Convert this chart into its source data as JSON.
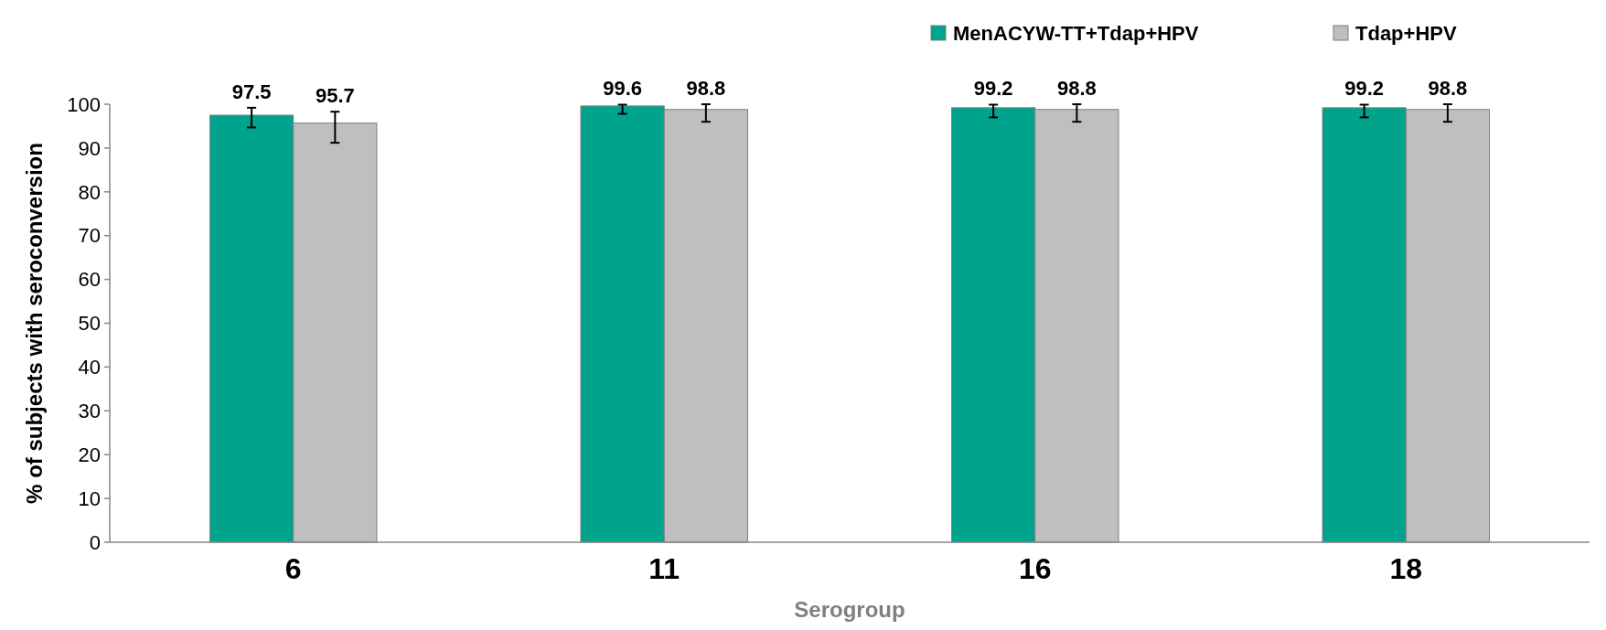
{
  "chart_data": {
    "type": "bar",
    "xlabel": "Serogroup",
    "ylabel": "% of subjects with seroconversion",
    "categories": [
      "6",
      "11",
      "16",
      "18"
    ],
    "series": [
      {
        "name": "MenACYW-TT+Tdap+HPV",
        "color": "#00a38b",
        "values": [
          97.5,
          99.6,
          99.2,
          99.2
        ],
        "errors": [
          [
            94.7,
            99.2
          ],
          [
            97.8,
            99.9
          ],
          [
            97.0,
            99.9
          ],
          [
            97.0,
            99.9
          ]
        ]
      },
      {
        "name": "Tdap+HPV",
        "color": "#bfbfbf",
        "values": [
          95.7,
          98.8,
          98.8,
          98.8
        ],
        "errors": [
          [
            91.2,
            98.3
          ],
          [
            96.0,
            100
          ],
          [
            96.0,
            100
          ],
          [
            96.0,
            100
          ]
        ]
      }
    ],
    "ylim": [
      0,
      100
    ],
    "yticks": [
      0,
      10,
      20,
      30,
      40,
      50,
      60,
      70,
      80,
      90,
      100
    ],
    "data_labels": true,
    "legend": "top right",
    "grid": false
  }
}
